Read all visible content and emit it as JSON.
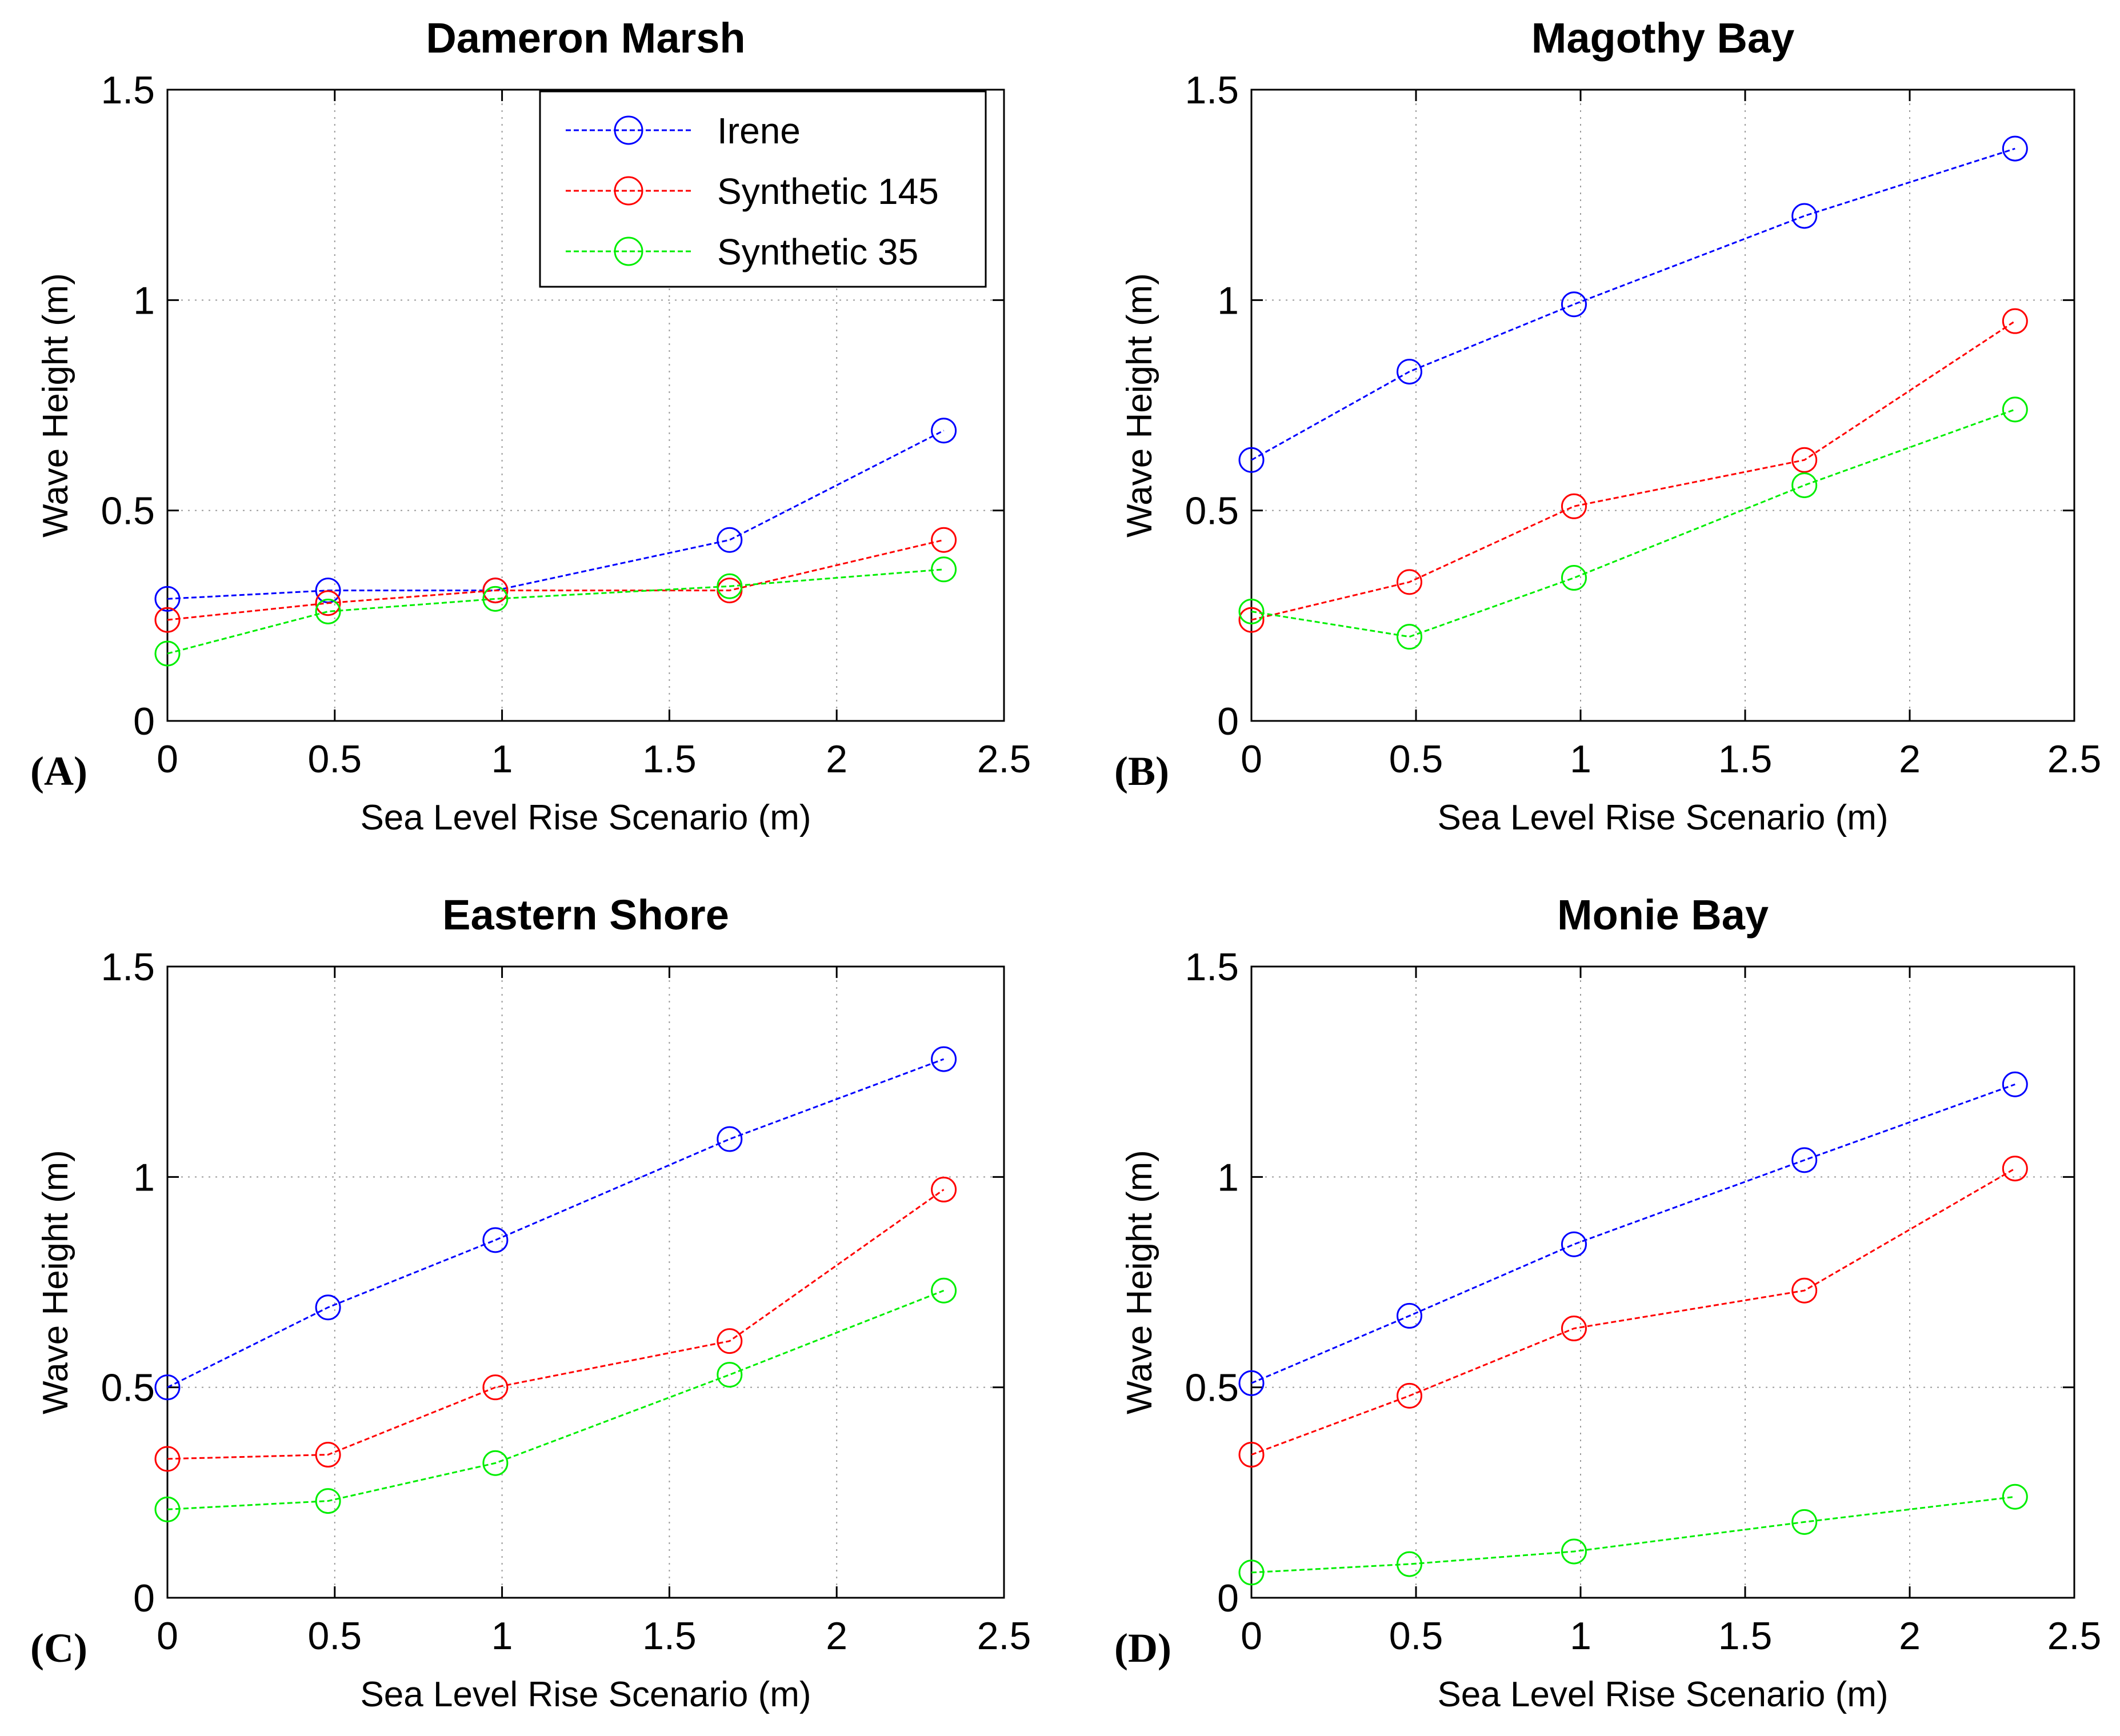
{
  "chart_data": [
    {
      "type": "line",
      "title": "Dameron Marsh",
      "panel_label": "(A)",
      "xlabel": "Sea Level Rise Scenario (m)",
      "ylabel": "Wave Height (m)",
      "xlim": [
        0,
        2.5
      ],
      "ylim": [
        0,
        1.5
      ],
      "xticks": [
        0,
        0.5,
        1,
        1.5,
        2,
        2.5
      ],
      "yticks": [
        0,
        0.5,
        1,
        1.5
      ],
      "x": [
        0,
        0.48,
        0.98,
        1.68,
        2.32
      ],
      "grid": true,
      "legend": "top-right",
      "series": [
        {
          "name": "Irene",
          "color": "#0000ff",
          "values": [
            0.29,
            0.31,
            0.31,
            0.43,
            0.69
          ]
        },
        {
          "name": "Synthetic 145",
          "color": "#ff0000",
          "values": [
            0.24,
            0.28,
            0.31,
            0.31,
            0.43
          ]
        },
        {
          "name": "Synthetic 35",
          "color": "#00ee00",
          "values": [
            0.16,
            0.26,
            0.29,
            0.32,
            0.36
          ]
        }
      ]
    },
    {
      "type": "line",
      "title": "Magothy Bay",
      "panel_label": "(B)",
      "xlabel": "Sea Level Rise Scenario (m)",
      "ylabel": "Wave Height (m)",
      "xlim": [
        0,
        2.5
      ],
      "ylim": [
        0,
        1.5
      ],
      "xticks": [
        0,
        0.5,
        1,
        1.5,
        2,
        2.5
      ],
      "yticks": [
        0,
        0.5,
        1,
        1.5
      ],
      "x": [
        0,
        0.48,
        0.98,
        1.68,
        2.32
      ],
      "grid": true,
      "legend": "",
      "series": [
        {
          "name": "Irene",
          "color": "#0000ff",
          "values": [
            0.62,
            0.83,
            0.99,
            1.2,
            1.36
          ]
        },
        {
          "name": "Synthetic 145",
          "color": "#ff0000",
          "values": [
            0.24,
            0.33,
            0.51,
            0.62,
            0.95
          ]
        },
        {
          "name": "Synthetic 35",
          "color": "#00ee00",
          "values": [
            0.26,
            0.2,
            0.34,
            0.56,
            0.74
          ]
        }
      ]
    },
    {
      "type": "line",
      "title": "Eastern Shore",
      "panel_label": "(C)",
      "xlabel": "Sea Level Rise Scenario (m)",
      "ylabel": "Wave Height (m)",
      "xlim": [
        0,
        2.5
      ],
      "ylim": [
        0,
        1.5
      ],
      "xticks": [
        0,
        0.5,
        1,
        1.5,
        2,
        2.5
      ],
      "yticks": [
        0,
        0.5,
        1,
        1.5
      ],
      "x": [
        0,
        0.48,
        0.98,
        1.68,
        2.32
      ],
      "grid": true,
      "legend": "",
      "series": [
        {
          "name": "Irene",
          "color": "#0000ff",
          "values": [
            0.5,
            0.69,
            0.85,
            1.09,
            1.28
          ]
        },
        {
          "name": "Synthetic 145",
          "color": "#ff0000",
          "values": [
            0.33,
            0.34,
            0.5,
            0.61,
            0.97
          ]
        },
        {
          "name": "Synthetic 35",
          "color": "#00ee00",
          "values": [
            0.21,
            0.23,
            0.32,
            0.53,
            0.73
          ]
        }
      ]
    },
    {
      "type": "line",
      "title": "Monie Bay",
      "panel_label": "(D)",
      "xlabel": "Sea Level Rise Scenario (m)",
      "ylabel": "Wave Height (m)",
      "xlim": [
        0,
        2.5
      ],
      "ylim": [
        0,
        1.5
      ],
      "xticks": [
        0,
        0.5,
        1,
        1.5,
        2,
        2.5
      ],
      "yticks": [
        0,
        0.5,
        1,
        1.5
      ],
      "x": [
        0,
        0.48,
        0.98,
        1.68,
        2.32
      ],
      "grid": true,
      "legend": "",
      "series": [
        {
          "name": "Irene",
          "color": "#0000ff",
          "values": [
            0.51,
            0.67,
            0.84,
            1.04,
            1.22
          ]
        },
        {
          "name": "Synthetic 145",
          "color": "#ff0000",
          "values": [
            0.34,
            0.48,
            0.64,
            0.73,
            1.02
          ]
        },
        {
          "name": "Synthetic 35",
          "color": "#00ee00",
          "values": [
            0.06,
            0.08,
            0.11,
            0.18,
            0.24
          ]
        }
      ]
    }
  ]
}
